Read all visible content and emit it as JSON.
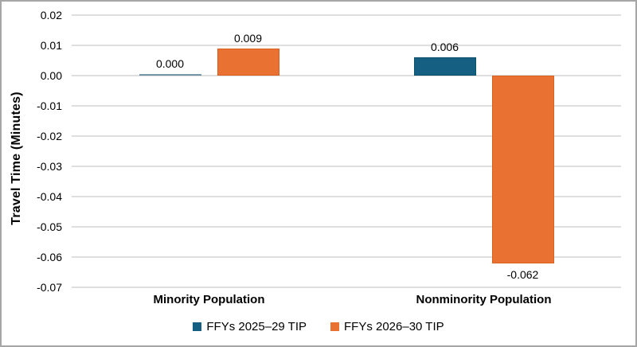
{
  "figure": {
    "background": "#ffffff",
    "border_color": "#a6a6a6",
    "gridline_color": "#dedede",
    "text_color": "#000000"
  },
  "chart_data": {
    "type": "bar",
    "title": "",
    "ylabel": "Travel Time (Minutes)",
    "xlabel": "",
    "categories": [
      "Minority Population",
      "Nonminority Population"
    ],
    "series": [
      {
        "name": "FFYs 2025–29 TIP",
        "color": "#156082",
        "border_color": "#11506c",
        "values": [
          0.0,
          0.006
        ],
        "labels": [
          "0.000",
          "0.006"
        ]
      },
      {
        "name": "FFYs 2026–30 TIP",
        "color": "#e97132",
        "border_color": "#d9601f",
        "values": [
          0.009,
          -0.062
        ],
        "labels": [
          "0.009",
          "-0.062"
        ]
      }
    ],
    "ylim": [
      -0.07,
      0.02
    ],
    "ytick_step": 0.01,
    "yticks": [
      "0.02",
      "0.01",
      "0.00",
      "-0.01",
      "-0.02",
      "-0.03",
      "-0.04",
      "-0.05",
      "-0.06",
      "-0.07"
    ],
    "grid": true,
    "legend_position": "bottom"
  }
}
